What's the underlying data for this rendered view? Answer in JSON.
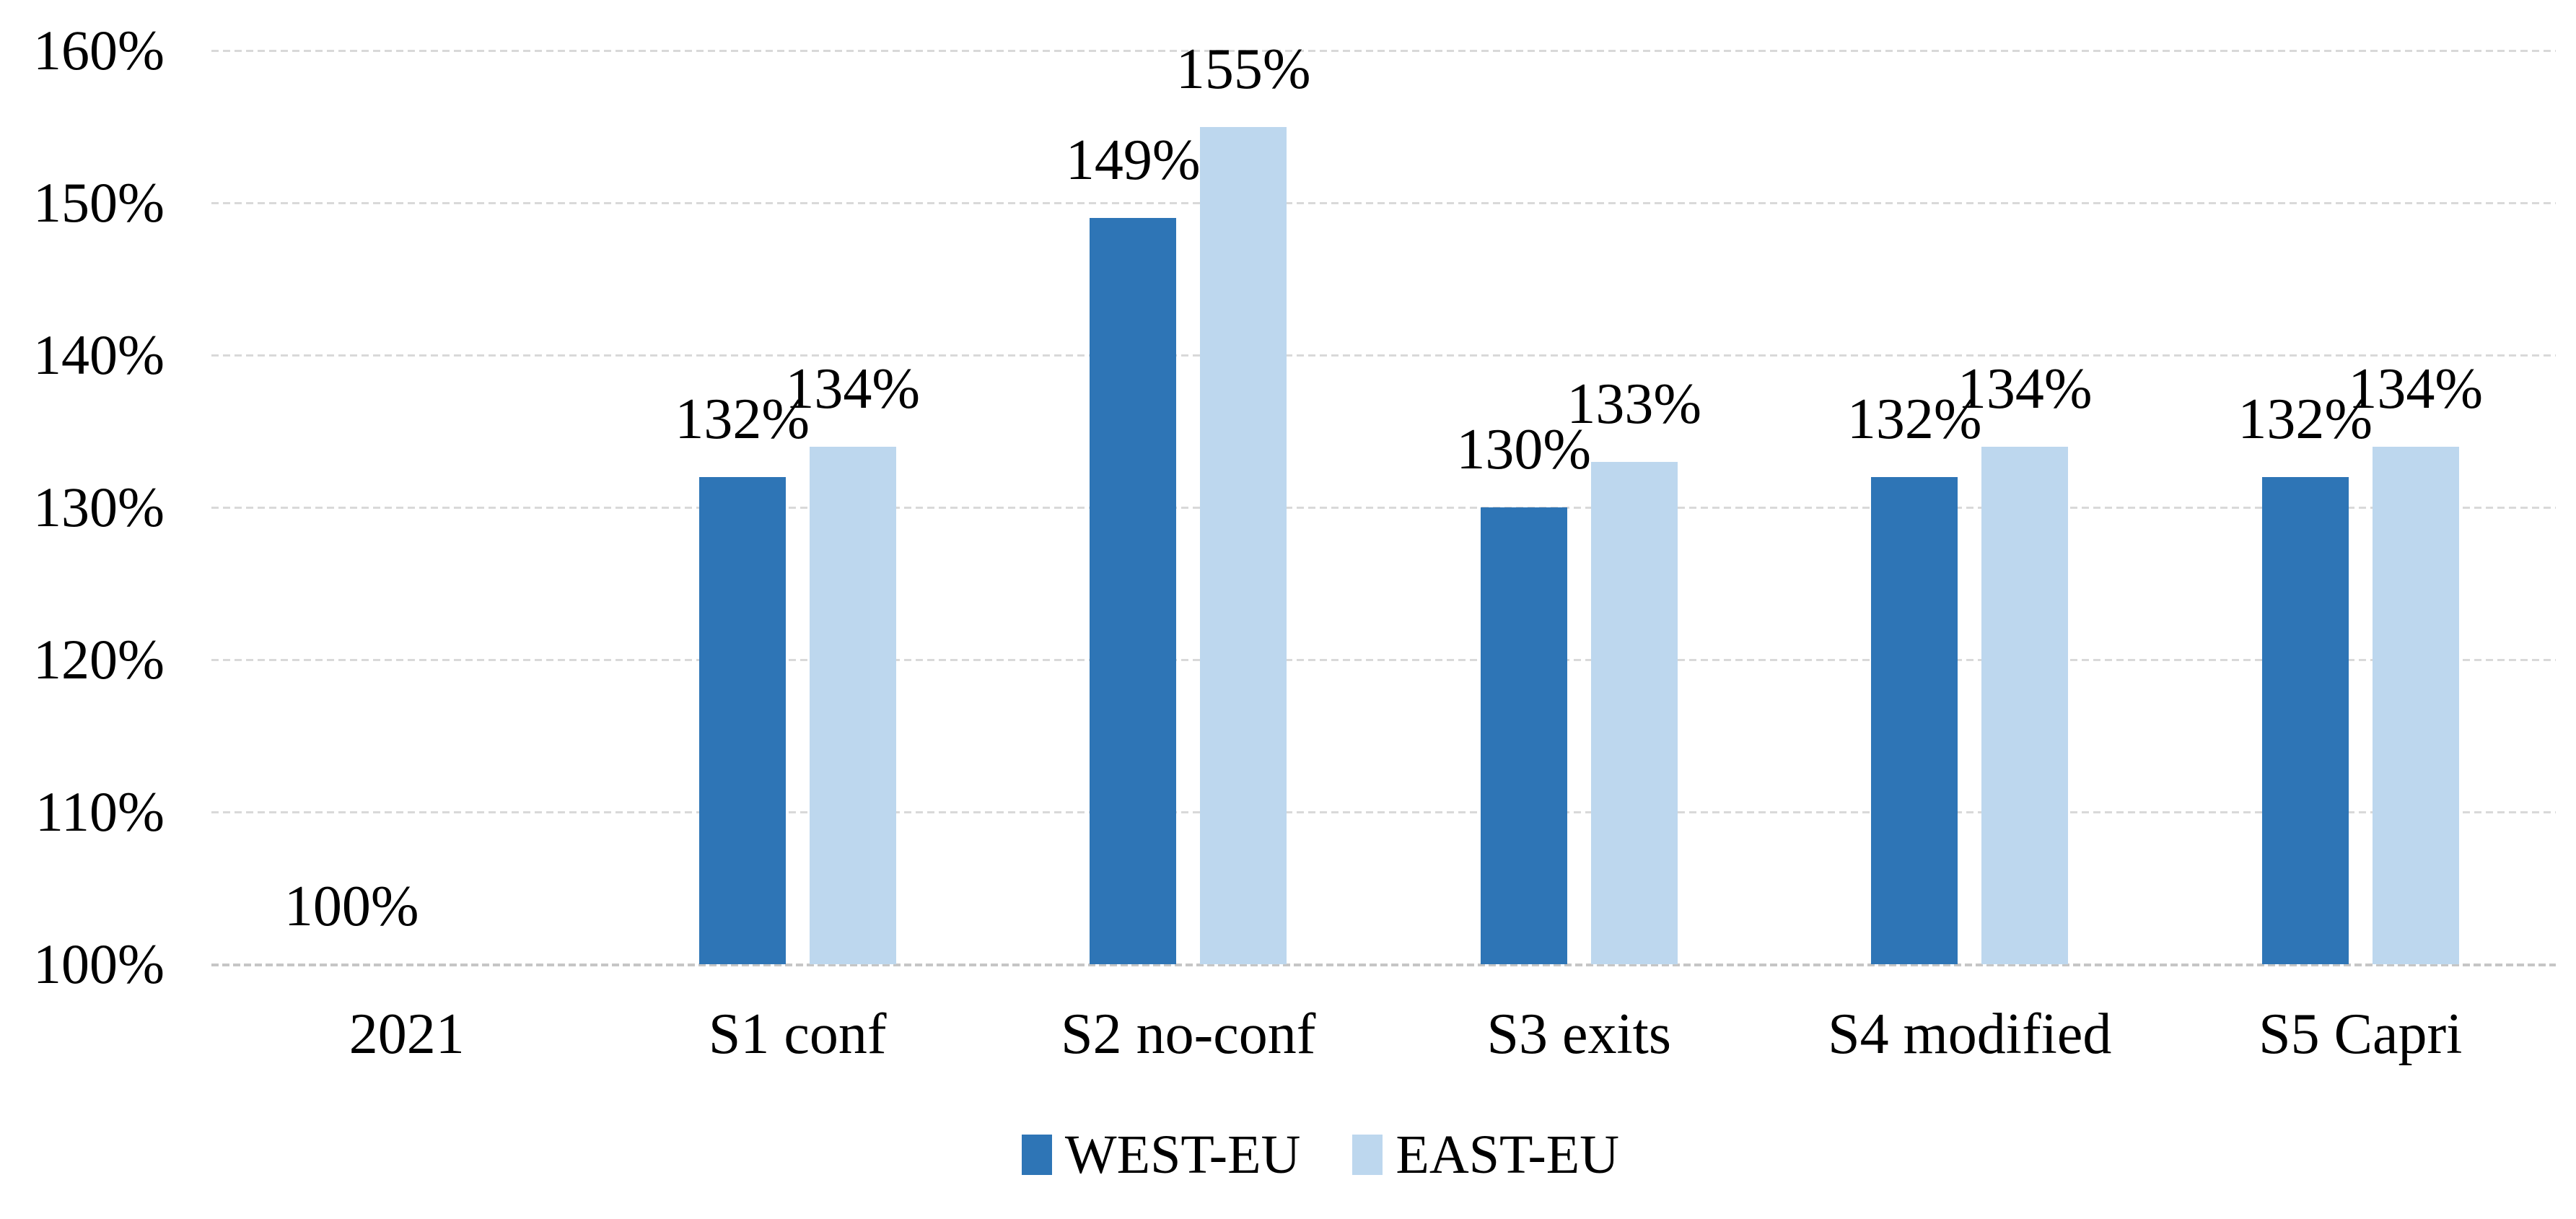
{
  "chart_data": {
    "type": "bar",
    "title": "",
    "categories": [
      "2021",
      "S1 conf",
      "S2 no-conf",
      "S3 exits",
      "S4 modified",
      "S5 Capri"
    ],
    "series": [
      {
        "name": "WEST-EU",
        "color": "#2E75B6",
        "values": [
          100,
          132,
          149,
          130,
          132,
          132
        ],
        "labels": [
          "100%",
          "132%",
          "149%",
          "130%",
          "132%",
          "132%"
        ]
      },
      {
        "name": "EAST-EU",
        "color": "#BDD7EE",
        "values": [
          100,
          134,
          155,
          133,
          134,
          134
        ],
        "labels": [
          "",
          "134%",
          "155%",
          "133%",
          "134%",
          "134%"
        ]
      }
    ],
    "ylim": [
      100,
      160
    ],
    "y_tick_values": [
      100,
      110,
      120,
      130,
      140,
      150,
      160
    ],
    "y_tick_labels": [
      "100%",
      "110%",
      "120%",
      "130%",
      "140%",
      "150%",
      "160%"
    ],
    "xlabel": "",
    "ylabel": "",
    "grid": "horizontal-dotted",
    "legend_position": "bottom"
  },
  "style": {
    "grid_color": "#D9D9D9",
    "axis_line_color": "#C6C6C6",
    "text_color": "#000000",
    "background": "#FFFFFF"
  }
}
